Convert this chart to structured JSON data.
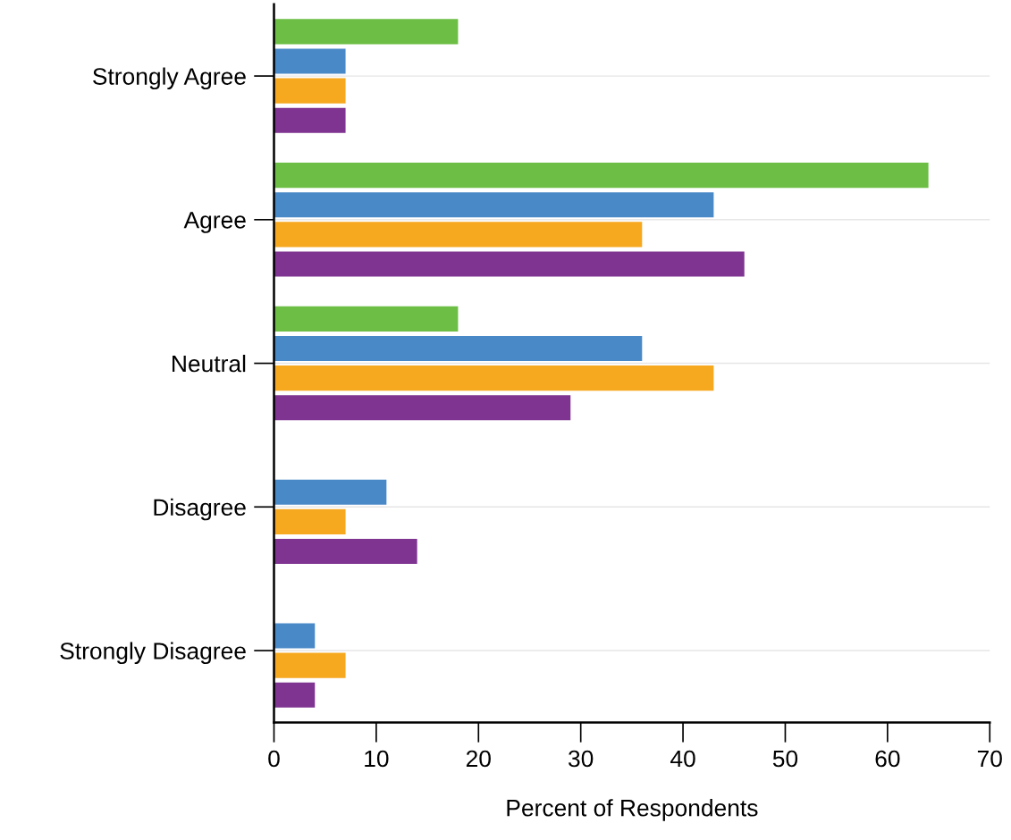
{
  "chart_data": {
    "type": "bar",
    "orientation": "horizontal",
    "xlabel": "Percent of Respondents",
    "categories": [
      "Strongly Agree",
      "Agree",
      "Neutral",
      "Disagree",
      "Strongly Disagree"
    ],
    "series": [
      {
        "color": "#6dbe45",
        "values": [
          18,
          64,
          18,
          null,
          null
        ]
      },
      {
        "color": "#4a89c8",
        "values": [
          7,
          43,
          36,
          11,
          4
        ]
      },
      {
        "color": "#f6a81f",
        "values": [
          7,
          36,
          43,
          7,
          7
        ]
      },
      {
        "color": "#7e3490",
        "values": [
          7,
          46,
          29,
          14,
          4
        ]
      }
    ],
    "xlim": [
      0,
      70
    ],
    "xticks": [
      0,
      10,
      20,
      30,
      40,
      50,
      60,
      70
    ],
    "grid": "y"
  }
}
